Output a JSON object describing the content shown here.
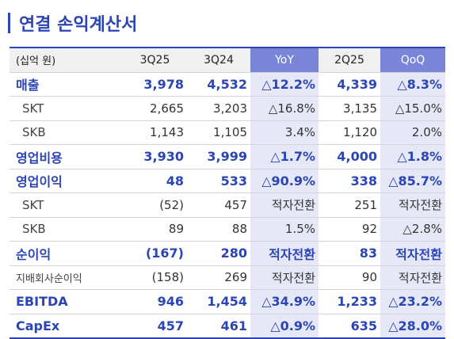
{
  "title": "연결 손익계산서",
  "headers": [
    "(십억 원)",
    "3Q25",
    "3Q24",
    "YoY",
    "2Q25",
    "QoQ"
  ],
  "rows": [
    {
      "label": "매출",
      "v": [
        "3,978",
        "4,532",
        "△12.2%",
        "4,339",
        "△8.3%"
      ]
    },
    {
      "label": "SKT",
      "v": [
        "2,665",
        "3,203",
        "△16.8%",
        "3,135",
        "△15.0%"
      ]
    },
    {
      "label": "SKB",
      "v": [
        "1,143",
        "1,105",
        "3.4%",
        "1,120",
        "2.0%"
      ]
    },
    {
      "label": "영업비용",
      "v": [
        "3,930",
        "3,999",
        "△1.7%",
        "4,000",
        "△1.8%"
      ]
    },
    {
      "label": "영업이익",
      "v": [
        "48",
        "533",
        "△90.9%",
        "338",
        "△85.7%"
      ]
    },
    {
      "label": "SKT",
      "v": [
        "(52)",
        "457",
        "적자전환",
        "251",
        "적자전환"
      ]
    },
    {
      "label": "SKB",
      "v": [
        "89",
        "88",
        "1.5%",
        "92",
        "△2.8%"
      ]
    },
    {
      "label": "순이익",
      "v": [
        "(167)",
        "280",
        "적자전환",
        "83",
        "적자전환"
      ]
    },
    {
      "label": "지배회사순이익",
      "v": [
        "(158)",
        "269",
        "적자전환",
        "90",
        "적자전환"
      ]
    },
    {
      "label": "EBITDA",
      "v": [
        "946",
        "1,454",
        "△34.9%",
        "1,233",
        "△23.2%"
      ]
    },
    {
      "label": "CapEx",
      "v": [
        "457",
        "461",
        "△0.9%",
        "635",
        "△28.0%"
      ]
    }
  ]
}
